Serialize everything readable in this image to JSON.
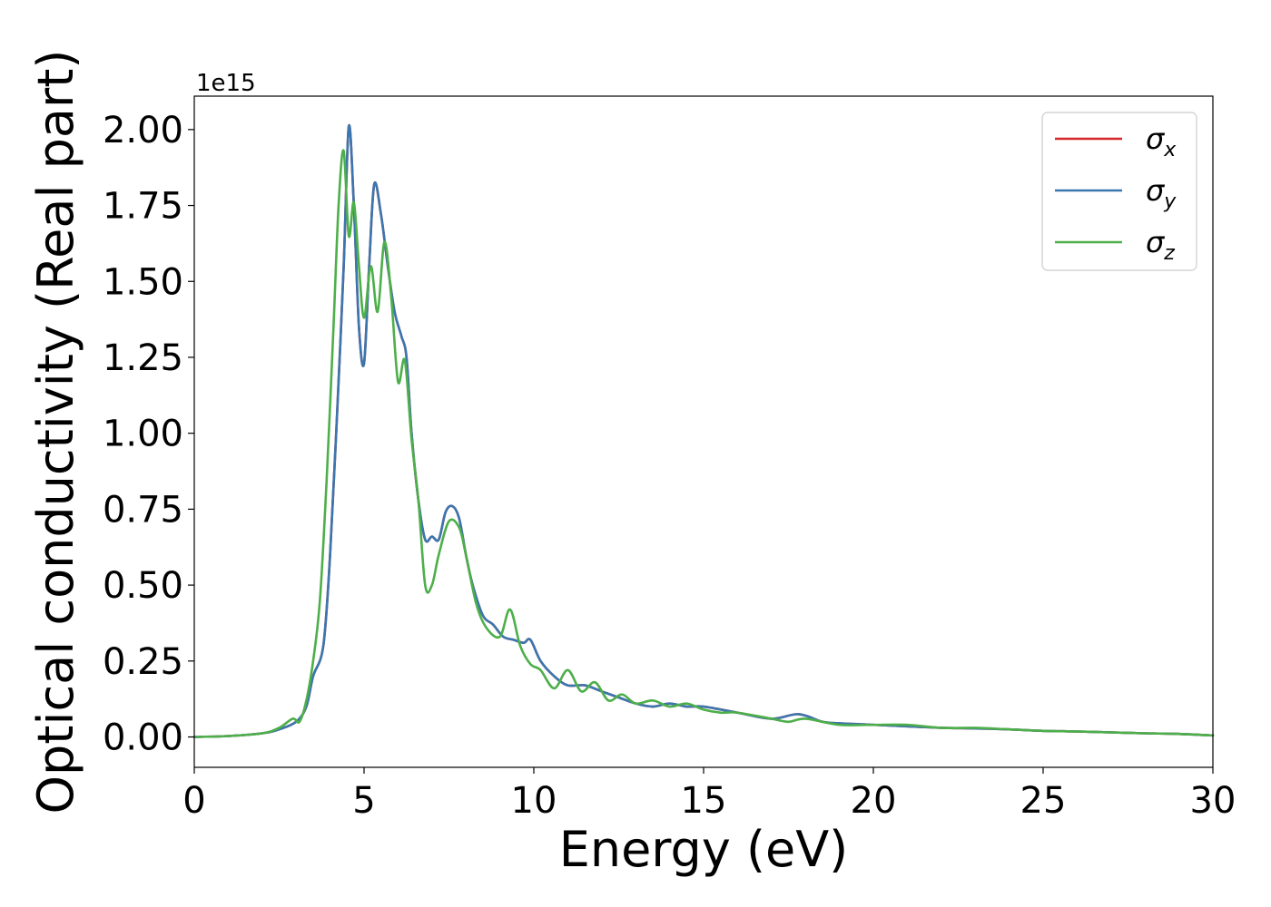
{
  "chart_data": {
    "type": "line",
    "xlabel": "Energy (eV)",
    "ylabel": "Optical conductivity (Real part)",
    "y_offset_label": "1e15",
    "xlim": [
      0,
      30
    ],
    "ylim": [
      -0.1,
      2.11
    ],
    "xticks": [
      0,
      5,
      10,
      15,
      20,
      25,
      30
    ],
    "xtick_labels": [
      "0",
      "5",
      "10",
      "15",
      "20",
      "25",
      "30"
    ],
    "yticks": [
      0.0,
      0.25,
      0.5,
      0.75,
      1.0,
      1.25,
      1.5,
      1.75,
      2.0
    ],
    "ytick_labels": [
      "0.00",
      "0.25",
      "0.50",
      "0.75",
      "1.00",
      "1.25",
      "1.50",
      "1.75",
      "2.00"
    ],
    "grid": false,
    "legend_position": "upper-right",
    "series": [
      {
        "name": "σx",
        "symbol": "σ",
        "subscript": "x",
        "color": "#d62728",
        "x": [
          0,
          1,
          2,
          2.5,
          3,
          3.3,
          3.5,
          3.8,
          4,
          4.2,
          4.4,
          4.55,
          4.7,
          4.85,
          5,
          5.15,
          5.3,
          5.5,
          5.7,
          5.9,
          6.1,
          6.25,
          6.4,
          6.6,
          6.8,
          7.0,
          7.2,
          7.4,
          7.6,
          7.8,
          8.0,
          8.2,
          8.5,
          8.8,
          9.1,
          9.4,
          9.7,
          9.9,
          10.2,
          10.6,
          11,
          11.5,
          12,
          12.5,
          13,
          13.5,
          14,
          14.5,
          15,
          16,
          17,
          17.8,
          18.5,
          19,
          20,
          21,
          22,
          23,
          24,
          25,
          26,
          27,
          28,
          29,
          30
        ],
        "y": [
          0.0,
          0.003,
          0.012,
          0.025,
          0.05,
          0.1,
          0.2,
          0.3,
          0.6,
          1.05,
          1.55,
          2.01,
          1.75,
          1.35,
          1.23,
          1.55,
          1.82,
          1.72,
          1.55,
          1.4,
          1.32,
          1.25,
          1.0,
          0.78,
          0.65,
          0.66,
          0.65,
          0.74,
          0.76,
          0.72,
          0.6,
          0.5,
          0.4,
          0.37,
          0.33,
          0.32,
          0.31,
          0.32,
          0.25,
          0.2,
          0.17,
          0.17,
          0.15,
          0.13,
          0.11,
          0.1,
          0.11,
          0.1,
          0.1,
          0.08,
          0.06,
          0.075,
          0.05,
          0.045,
          0.04,
          0.035,
          0.03,
          0.028,
          0.025,
          0.02,
          0.018,
          0.015,
          0.012,
          0.01,
          0.005
        ]
      },
      {
        "name": "σy",
        "symbol": "σ",
        "subscript": "y",
        "color": "#3a76af",
        "x": [
          0,
          1,
          2,
          2.5,
          3,
          3.3,
          3.5,
          3.8,
          4,
          4.2,
          4.4,
          4.55,
          4.7,
          4.85,
          5,
          5.15,
          5.3,
          5.5,
          5.7,
          5.9,
          6.1,
          6.25,
          6.4,
          6.6,
          6.8,
          7.0,
          7.2,
          7.4,
          7.6,
          7.8,
          8.0,
          8.2,
          8.5,
          8.8,
          9.1,
          9.4,
          9.7,
          9.9,
          10.2,
          10.6,
          11,
          11.5,
          12,
          12.5,
          13,
          13.5,
          14,
          14.5,
          15,
          16,
          17,
          17.8,
          18.5,
          19,
          20,
          21,
          22,
          23,
          24,
          25,
          26,
          27,
          28,
          29,
          30
        ],
        "y": [
          0.0,
          0.003,
          0.012,
          0.025,
          0.05,
          0.1,
          0.2,
          0.3,
          0.6,
          1.05,
          1.55,
          2.01,
          1.75,
          1.35,
          1.23,
          1.55,
          1.82,
          1.72,
          1.55,
          1.4,
          1.32,
          1.25,
          1.0,
          0.78,
          0.65,
          0.66,
          0.65,
          0.74,
          0.76,
          0.72,
          0.6,
          0.5,
          0.4,
          0.37,
          0.33,
          0.32,
          0.31,
          0.32,
          0.25,
          0.2,
          0.17,
          0.17,
          0.15,
          0.13,
          0.11,
          0.1,
          0.11,
          0.1,
          0.1,
          0.08,
          0.06,
          0.075,
          0.05,
          0.045,
          0.04,
          0.035,
          0.03,
          0.028,
          0.025,
          0.02,
          0.018,
          0.015,
          0.012,
          0.01,
          0.005
        ]
      },
      {
        "name": "σz",
        "symbol": "σ",
        "subscript": "z",
        "color": "#4daf4a",
        "x": [
          0,
          1,
          2,
          2.5,
          2.9,
          3.1,
          3.3,
          3.5,
          3.7,
          3.9,
          4.1,
          4.25,
          4.4,
          4.55,
          4.7,
          4.85,
          5.0,
          5.2,
          5.4,
          5.6,
          5.8,
          6.0,
          6.2,
          6.4,
          6.6,
          6.8,
          7.0,
          7.2,
          7.5,
          7.8,
          8.0,
          8.3,
          8.6,
          9.0,
          9.3,
          9.6,
          9.9,
          10.2,
          10.6,
          11.0,
          11.4,
          11.8,
          12.2,
          12.6,
          13.0,
          13.5,
          14.0,
          14.5,
          15.0,
          15.5,
          16,
          17,
          17.5,
          18,
          19,
          20,
          21,
          22,
          23,
          24,
          25,
          26,
          27,
          28,
          29,
          30
        ],
        "y": [
          0.0,
          0.003,
          0.012,
          0.03,
          0.06,
          0.05,
          0.12,
          0.25,
          0.45,
          0.85,
          1.35,
          1.75,
          1.93,
          1.65,
          1.76,
          1.55,
          1.38,
          1.55,
          1.4,
          1.63,
          1.45,
          1.17,
          1.24,
          0.98,
          0.78,
          0.5,
          0.5,
          0.6,
          0.71,
          0.69,
          0.6,
          0.44,
          0.36,
          0.33,
          0.42,
          0.3,
          0.24,
          0.22,
          0.16,
          0.22,
          0.15,
          0.18,
          0.12,
          0.14,
          0.11,
          0.12,
          0.1,
          0.11,
          0.09,
          0.08,
          0.08,
          0.06,
          0.05,
          0.06,
          0.04,
          0.04,
          0.04,
          0.03,
          0.03,
          0.025,
          0.02,
          0.018,
          0.015,
          0.012,
          0.01,
          0.005
        ]
      }
    ]
  }
}
